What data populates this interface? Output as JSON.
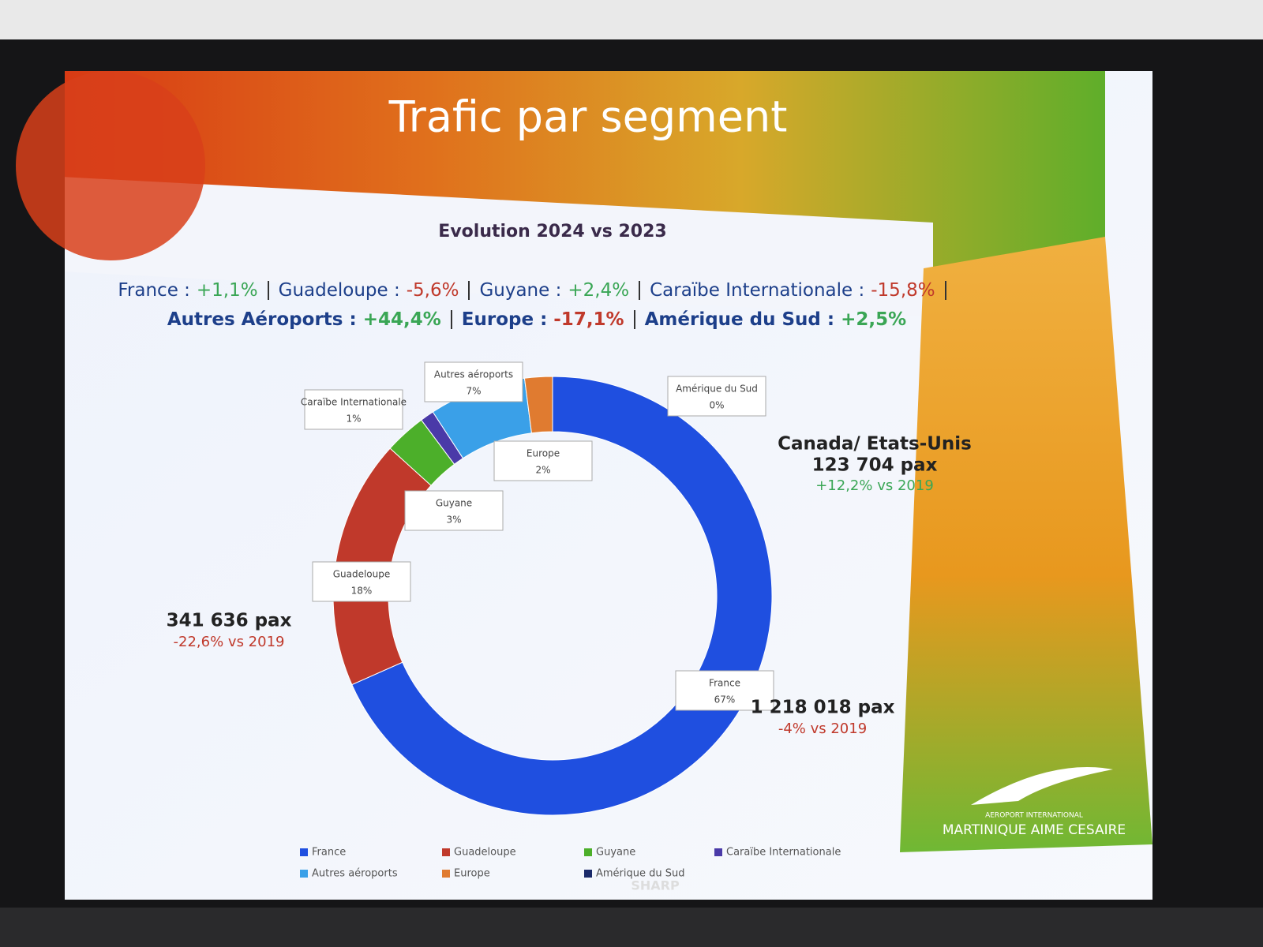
{
  "chart_data": {
    "type": "pie",
    "title": "Trafic par segment",
    "subtitle": "Evolution 2024 vs 2023",
    "evolution": [
      [
        {
          "label": "France :",
          "change": "+1,1%",
          "color": "#3aa655"
        },
        {
          "label": "Guadeloupe :",
          "change": "-5,6%",
          "color": "#c0392b"
        },
        {
          "label": "Guyane :",
          "change": "+2,4%",
          "color": "#3aa655"
        },
        {
          "label": "Caraïbe Internationale :",
          "change": "-15,8%",
          "color": "#c0392b"
        }
      ],
      [
        {
          "label": "Autres Aéroports :",
          "change": "+44,4%",
          "color": "#3aa655"
        },
        {
          "label": "Europe :",
          "change": "-17,1%",
          "color": "#c0392b"
        },
        {
          "label": "Amérique du Sud :",
          "change": "+2,5%",
          "color": "#3aa655"
        }
      ]
    ],
    "categories": [
      "France",
      "Guadeloupe",
      "Guyane",
      "Caraïbe Internationale",
      "Autres aéroports",
      "Europe",
      "Amérique du Sud"
    ],
    "values": [
      67,
      18,
      3,
      1,
      7,
      2,
      0
    ],
    "value_labels": [
      "67%",
      "18%",
      "3%",
      "1%",
      "7%",
      "2%",
      "0%"
    ],
    "colors": [
      "#1f4fe0",
      "#c0392b",
      "#4caf2a",
      "#4a3aa8",
      "#3aa0e8",
      "#e07b30",
      "#1a2a6a"
    ],
    "legend": "bottom",
    "annotations": [
      {
        "lines": [
          {
            "text": "341 636 pax",
            "color": "#222222"
          },
          {
            "text": "-22,6% vs 2019",
            "color": "#c0392b"
          }
        ]
      },
      {
        "lines": [
          {
            "text": "1 218 018 pax",
            "color": "#222222"
          },
          {
            "text": "-4% vs 2019",
            "color": "#c0392b"
          }
        ]
      },
      {
        "lines": [
          {
            "text": "Canada/ Etats-Unis",
            "color": "#222222"
          },
          {
            "text": "123 704 pax",
            "color": "#222222"
          },
          {
            "text": "+12,2% vs 2019",
            "color": "#3aa655"
          }
        ]
      }
    ]
  },
  "logo": {
    "line1": "AEROPORT INTERNATIONAL",
    "line2": "MARTINIQUE AIME CESAIRE"
  },
  "bezel_brand": "SHARP"
}
